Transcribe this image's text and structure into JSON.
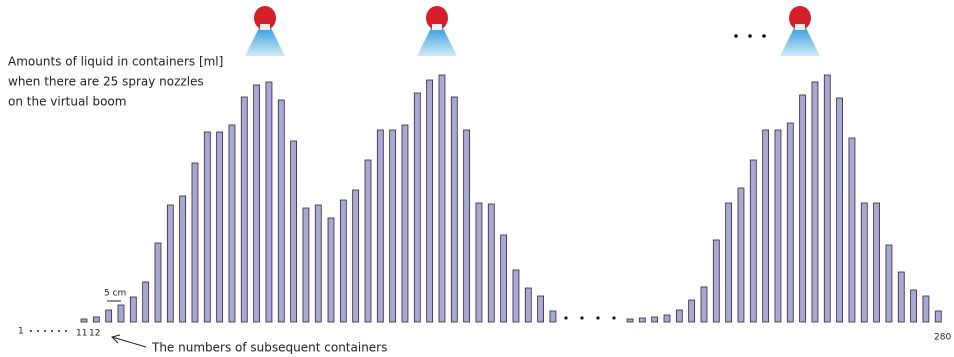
{
  "caption": [
    "Amounts of liquid in containers [ml]",
    "when there are 25 spray nozzles",
    "on the virtual boom"
  ],
  "scale_label": "5 cm",
  "container_numbers": {
    "first": "1",
    "eleventh": "11",
    "twelfth": "12",
    "last": "280"
  },
  "arrow_note": "The numbers of subsequent containers",
  "groups": [
    {
      "values": [
        3,
        5,
        12,
        17,
        25,
        40,
        79,
        117,
        126,
        159,
        190,
        190,
        197,
        225,
        237,
        240,
        222,
        181,
        114,
        117
      ]
    },
    {
      "values": [
        104,
        122,
        132,
        162,
        192,
        192,
        197,
        229,
        242,
        247,
        225,
        192,
        119,
        118,
        87,
        52,
        34,
        26,
        11
      ]
    },
    {
      "values": [
        3,
        4,
        5,
        7,
        12,
        22,
        35,
        82,
        119,
        134,
        162,
        192,
        192,
        199,
        227,
        240,
        247,
        224,
        184,
        119,
        119,
        77,
        50,
        32,
        26,
        11
      ]
    }
  ]
}
